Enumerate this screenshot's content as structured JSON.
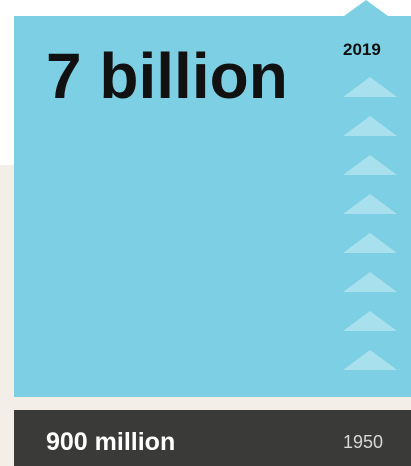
{
  "top": {
    "value": "7 billion",
    "year": "2019"
  },
  "bottom": {
    "value": "900 million",
    "year": "1950"
  }
}
